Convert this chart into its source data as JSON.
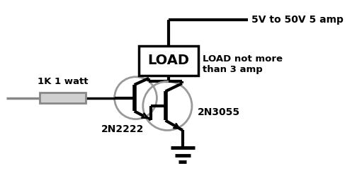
{
  "bg_color": "#ffffff",
  "line_color": "#000000",
  "gray_color": "#888888",
  "transistor_circle_color": "#999999",
  "labels": {
    "voltage": "5V to 50V 5 amp",
    "load_label": "LOAD not more\nthan 3 amp",
    "resistor_label": "1K 1 watt",
    "t1_label": "2N2222",
    "t2_label": "2N3055",
    "load_box": "LOAD"
  },
  "fig_width": 5.04,
  "fig_height": 2.69,
  "dpi": 100
}
